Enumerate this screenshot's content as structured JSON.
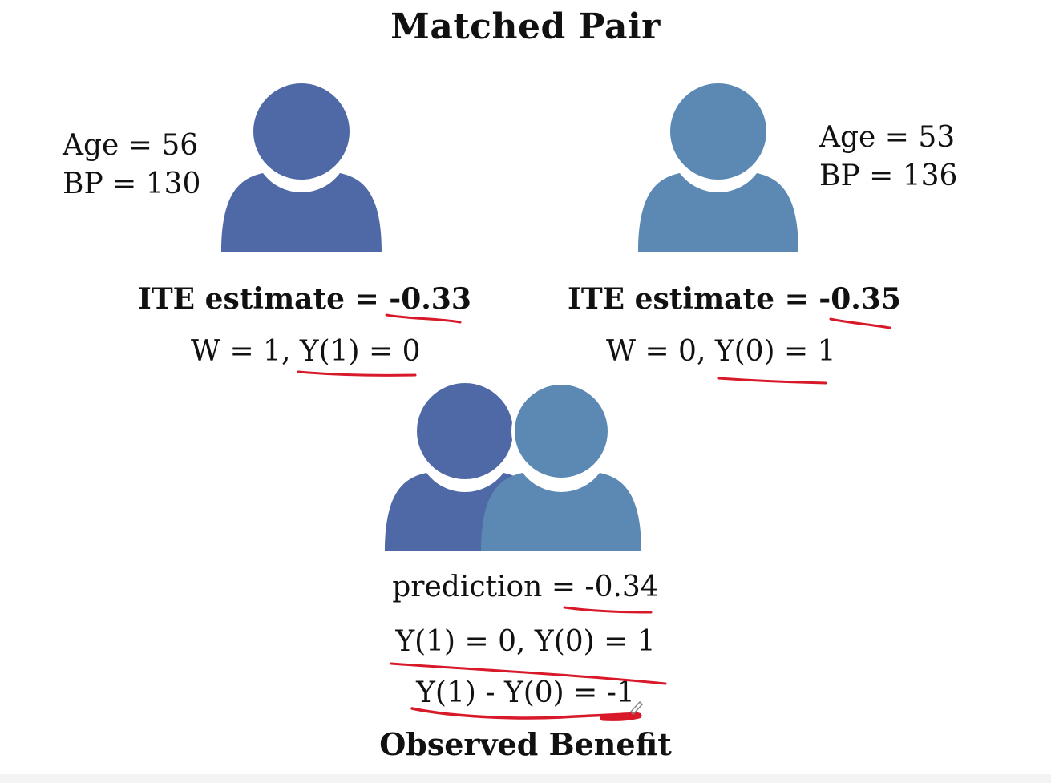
{
  "title": "Matched Pair",
  "colors": {
    "person_left": "#4E69A6",
    "person_right": "#5B89B4",
    "annotation": "#D8192A"
  },
  "left_person": {
    "icon": "person-icon",
    "age": "Age = 56",
    "bp": "BP = 130",
    "ite_label": "ITE estimate = ",
    "ite_value": "-0.33",
    "treatment_prefix": "W = 1, ",
    "outcome": "Y(1) = 0"
  },
  "right_person": {
    "icon": "person-icon",
    "age": "Age = 53",
    "bp": "BP = 136",
    "ite_label": "ITE estimate = ",
    "ite_value": "-0.35",
    "treatment_prefix": "W = 0, ",
    "outcome": "Y(0) = 1"
  },
  "pair": {
    "icon": "person-pair-icon",
    "prediction_label": "prediction = ",
    "prediction_value": "-0.34",
    "outcomes": "Y(1) = 0, Y(0) = 1",
    "difference": "Y(1) - Y(0) = -1",
    "benefit_label": "Observed Benefit"
  }
}
